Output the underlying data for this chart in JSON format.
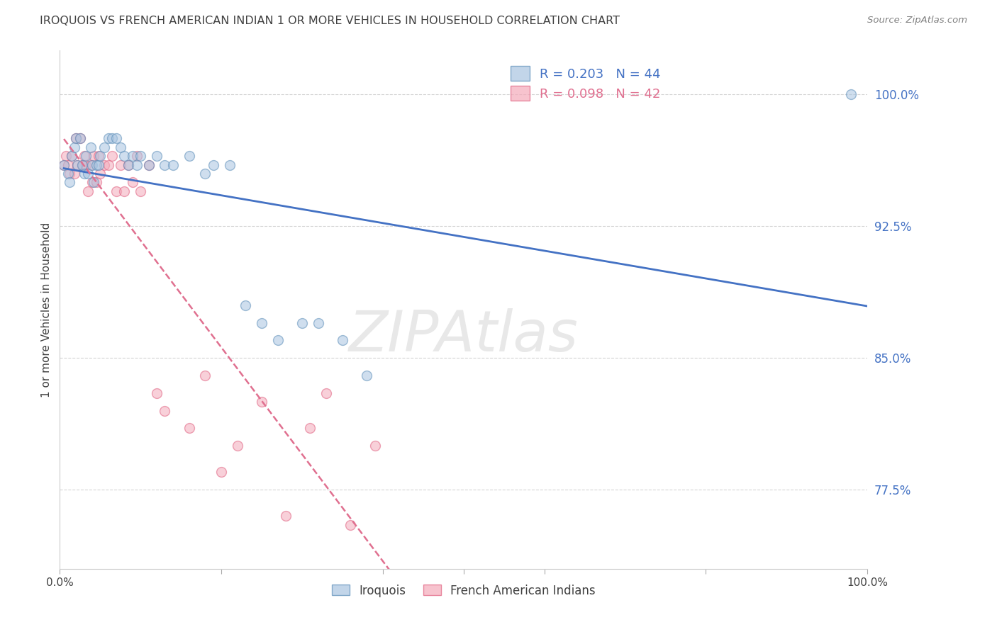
{
  "title": "IROQUOIS VS FRENCH AMERICAN INDIAN 1 OR MORE VEHICLES IN HOUSEHOLD CORRELATION CHART",
  "source": "Source: ZipAtlas.com",
  "ylabel": "1 or more Vehicles in Household",
  "watermark": "ZIPAtlas",
  "iroquois_R": 0.203,
  "iroquois_N": 44,
  "french_R": 0.098,
  "french_N": 42,
  "legend_labels": [
    "Iroquois",
    "French American Indians"
  ],
  "blue_color": "#A8C4E0",
  "pink_color": "#F4AABA",
  "blue_edge_color": "#5B8DB8",
  "pink_edge_color": "#E06080",
  "blue_line_color": "#4472C4",
  "pink_line_color": "#E07090",
  "right_tick_color": "#4472C4",
  "title_color": "#404040",
  "source_color": "#808080",
  "ylabel_color": "#404040",
  "grid_color": "#D0D0D0",
  "xlim": [
    0.0,
    1.0
  ],
  "ylim": [
    0.73,
    1.025
  ],
  "yticks": [
    0.775,
    0.85,
    0.925,
    1.0
  ],
  "ytick_labels": [
    "77.5%",
    "85.0%",
    "92.5%",
    "100.0%"
  ],
  "iroquois_x": [
    0.005,
    0.01,
    0.012,
    0.015,
    0.018,
    0.02,
    0.022,
    0.025,
    0.028,
    0.03,
    0.032,
    0.035,
    0.038,
    0.04,
    0.042,
    0.045,
    0.048,
    0.05,
    0.055,
    0.06,
    0.065,
    0.07,
    0.075,
    0.08,
    0.085,
    0.09,
    0.095,
    0.1,
    0.11,
    0.12,
    0.13,
    0.14,
    0.16,
    0.18,
    0.19,
    0.21,
    0.23,
    0.25,
    0.27,
    0.3,
    0.32,
    0.35,
    0.38,
    0.98
  ],
  "iroquois_y": [
    0.96,
    0.955,
    0.95,
    0.965,
    0.97,
    0.975,
    0.96,
    0.975,
    0.96,
    0.955,
    0.965,
    0.955,
    0.97,
    0.96,
    0.95,
    0.96,
    0.96,
    0.965,
    0.97,
    0.975,
    0.975,
    0.975,
    0.97,
    0.965,
    0.96,
    0.965,
    0.96,
    0.965,
    0.96,
    0.965,
    0.96,
    0.96,
    0.965,
    0.955,
    0.96,
    0.96,
    0.88,
    0.87,
    0.86,
    0.87,
    0.87,
    0.86,
    0.84,
    1.0
  ],
  "french_x": [
    0.005,
    0.008,
    0.01,
    0.012,
    0.015,
    0.018,
    0.02,
    0.022,
    0.025,
    0.028,
    0.03,
    0.032,
    0.035,
    0.038,
    0.04,
    0.042,
    0.045,
    0.048,
    0.05,
    0.055,
    0.06,
    0.065,
    0.07,
    0.075,
    0.08,
    0.085,
    0.09,
    0.095,
    0.1,
    0.11,
    0.12,
    0.13,
    0.16,
    0.18,
    0.2,
    0.22,
    0.25,
    0.28,
    0.31,
    0.33,
    0.36,
    0.39
  ],
  "french_y": [
    0.96,
    0.965,
    0.96,
    0.955,
    0.965,
    0.955,
    0.975,
    0.96,
    0.975,
    0.96,
    0.965,
    0.96,
    0.945,
    0.96,
    0.95,
    0.965,
    0.95,
    0.965,
    0.955,
    0.96,
    0.96,
    0.965,
    0.945,
    0.96,
    0.945,
    0.96,
    0.95,
    0.965,
    0.945,
    0.96,
    0.83,
    0.82,
    0.81,
    0.84,
    0.785,
    0.8,
    0.825,
    0.76,
    0.81,
    0.83,
    0.755,
    0.8
  ],
  "marker_size": 100,
  "alpha": 0.55
}
